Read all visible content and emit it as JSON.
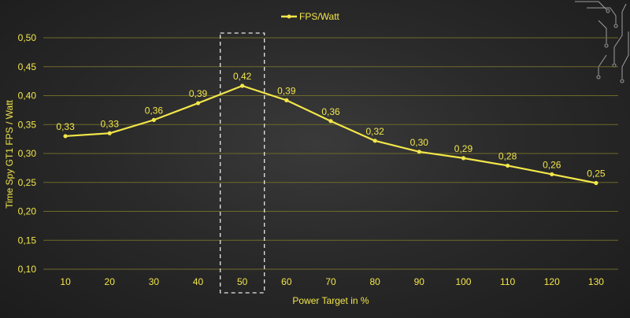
{
  "chart_data": {
    "type": "line",
    "x": [
      "10",
      "20",
      "30",
      "40",
      "50",
      "60",
      "70",
      "80",
      "90",
      "100",
      "110",
      "120",
      "130"
    ],
    "series": [
      {
        "name": "FPS/Watt",
        "values": [
          0.33,
          0.335,
          0.358,
          0.387,
          0.417,
          0.392,
          0.356,
          0.322,
          0.303,
          0.292,
          0.279,
          0.264,
          0.249
        ],
        "labels": [
          "0,33",
          "0,33",
          "0,36",
          "0,39",
          "0,42",
          "0,39",
          "0,36",
          "0,32",
          "0,30",
          "0,29",
          "0,28",
          "0,26",
          "0,25"
        ]
      }
    ],
    "xlabel": "Power Target in %",
    "ylabel": "Time Spy GT1 FPS / Watt",
    "ylim": [
      0.1,
      0.5
    ],
    "yticks": [
      0.1,
      0.15,
      0.2,
      0.25,
      0.3,
      0.35,
      0.4,
      0.45,
      0.5
    ],
    "ytick_labels": [
      "0,10",
      "0,15",
      "0,20",
      "0,25",
      "0,30",
      "0,35",
      "0,40",
      "0,45",
      "0,50"
    ],
    "grid": true,
    "legend": "top-center",
    "highlight_category": "50",
    "colors": {
      "line": "#f2e64a",
      "grid": "#6e6a2a",
      "highlight_box": "#e8e8e8"
    }
  }
}
